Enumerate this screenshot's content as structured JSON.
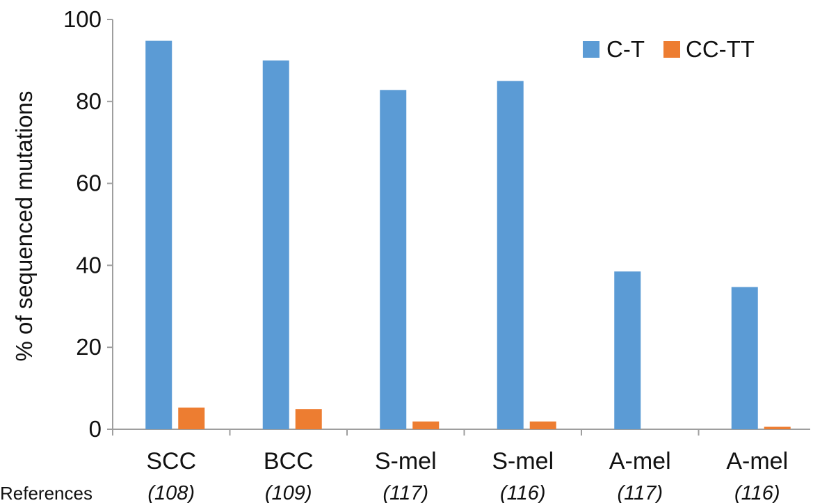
{
  "chart_data": {
    "type": "bar",
    "ylabel": "% of sequenced mutations",
    "ylim": [
      0,
      100
    ],
    "yticks": [
      0,
      20,
      40,
      60,
      80,
      100
    ],
    "grid": false,
    "legend_position": "top-right",
    "categories": [
      "SCC",
      "BCC",
      "S-mel",
      "S-mel",
      "A-mel",
      "A-mel"
    ],
    "references_label": "References",
    "references": [
      "(108)",
      "(109)",
      "(117)",
      "(116)",
      "(117)",
      "(116)"
    ],
    "series": [
      {
        "name": "C-T",
        "color": "#5B9BD5",
        "values": [
          94.8,
          90.0,
          82.8,
          85.0,
          38.5,
          34.7
        ]
      },
      {
        "name": "CC-TT",
        "color": "#ED7D31",
        "values": [
          5.3,
          4.9,
          1.9,
          1.9,
          0,
          0.6
        ]
      }
    ]
  }
}
